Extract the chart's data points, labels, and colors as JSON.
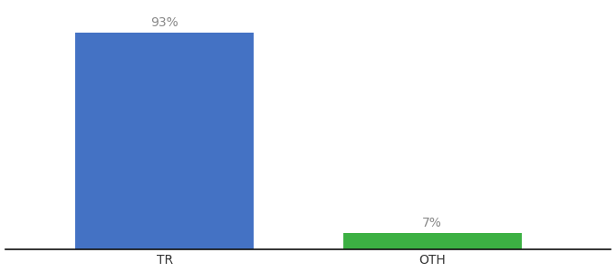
{
  "categories": [
    "TR",
    "OTH"
  ],
  "values": [
    93,
    7
  ],
  "bar_colors": [
    "#4472C4",
    "#3CB043"
  ],
  "label_texts": [
    "93%",
    "7%"
  ],
  "label_color": "#888888",
  "background_color": "#ffffff",
  "ylim": [
    0,
    105
  ],
  "bar_width": 0.28,
  "positions": [
    0.3,
    0.72
  ],
  "xlim": [
    0.05,
    1.0
  ],
  "xlabel_fontsize": 10,
  "label_fontsize": 10,
  "spine_color": "#111111",
  "tick_color": "#333333"
}
